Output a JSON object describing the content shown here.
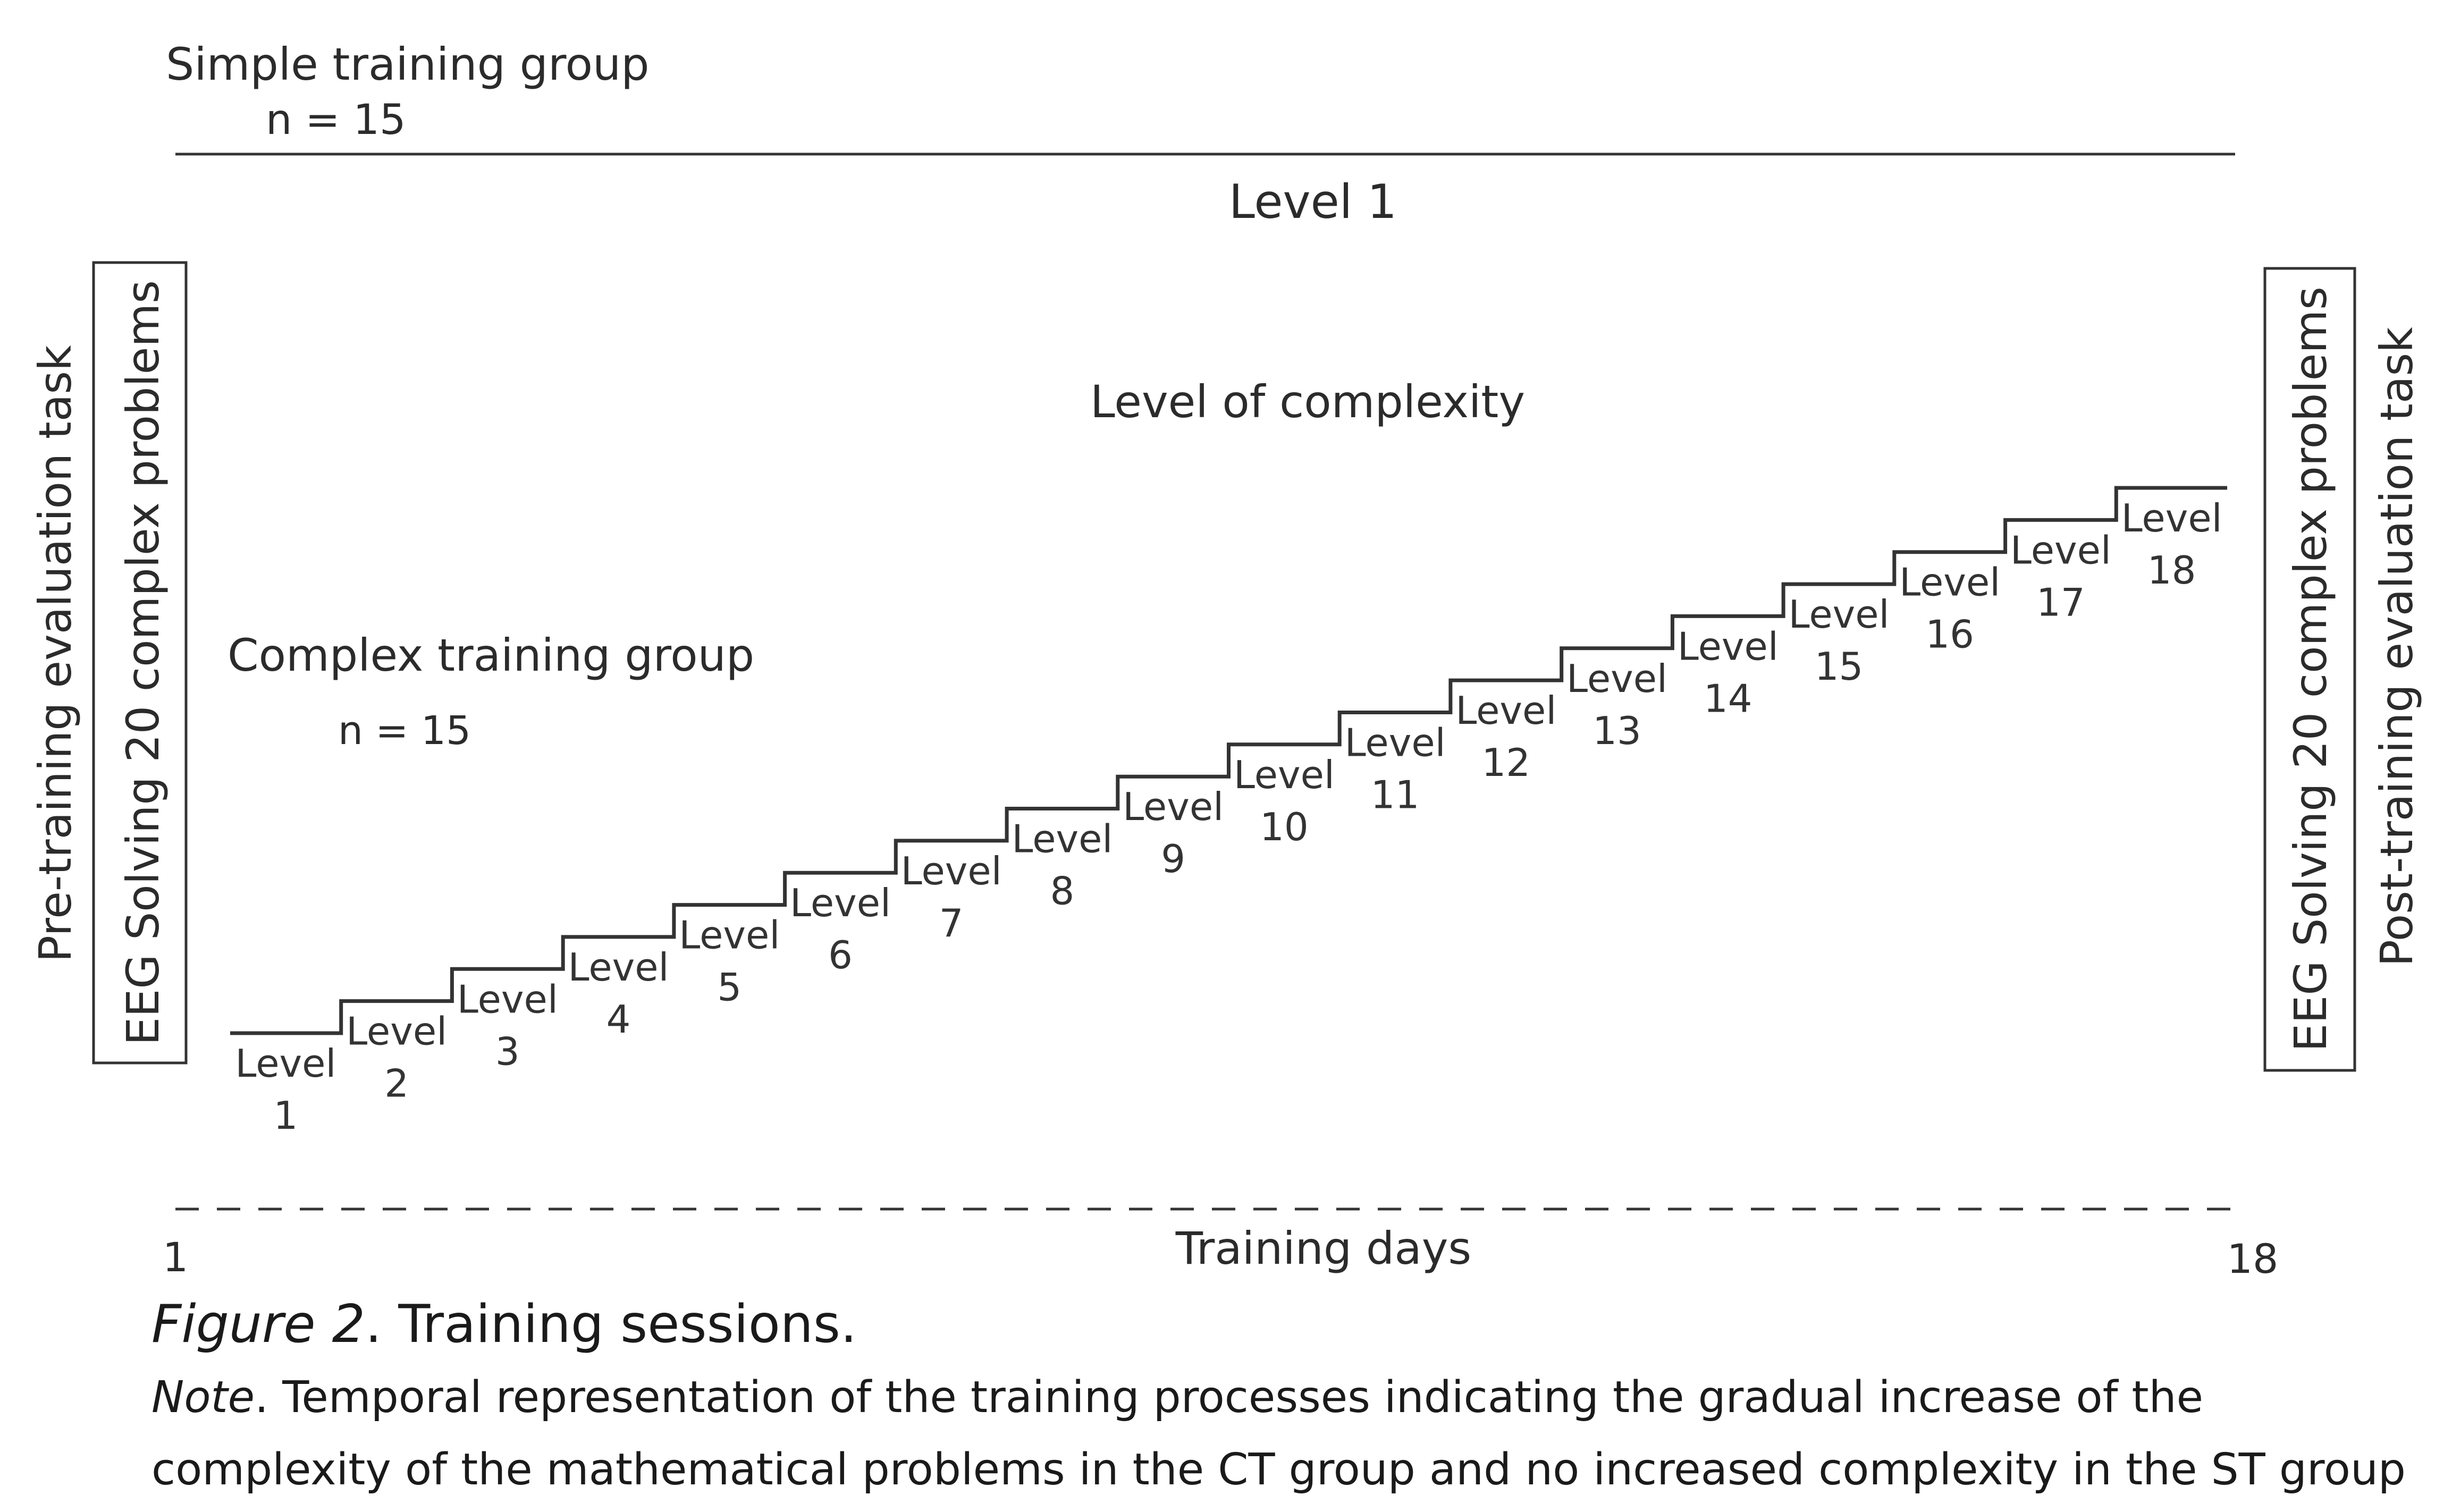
{
  "simple_group": {
    "title": "Simple training group",
    "n": "n = 15",
    "level": "Level 1"
  },
  "complex_group": {
    "title": "Complex training group",
    "n": "n = 15",
    "complexity_label": "Level of complexity",
    "levels": [
      {
        "word": "Level",
        "num": "1"
      },
      {
        "word": "Level",
        "num": "2"
      },
      {
        "word": "Level",
        "num": "3"
      },
      {
        "word": "Level",
        "num": "4"
      },
      {
        "word": "Level",
        "num": "5"
      },
      {
        "word": "Level",
        "num": "6"
      },
      {
        "word": "Level",
        "num": "7"
      },
      {
        "word": "Level",
        "num": "8"
      },
      {
        "word": "Level",
        "num": "9"
      },
      {
        "word": "Level",
        "num": "10"
      },
      {
        "word": "Level",
        "num": "11"
      },
      {
        "word": "Level",
        "num": "12"
      },
      {
        "word": "Level",
        "num": "13"
      },
      {
        "word": "Level",
        "num": "14"
      },
      {
        "word": "Level",
        "num": "15"
      },
      {
        "word": "Level",
        "num": "16"
      },
      {
        "word": "Level",
        "num": "17"
      },
      {
        "word": "Level",
        "num": "18"
      }
    ]
  },
  "pre_task": {
    "outer_label": "Pre-training evaluation task",
    "box_label": "EEG Solving 20 complex problems"
  },
  "post_task": {
    "box_label": "EEG Solving 20 complex problems",
    "outer_label": "Post-training evaluation task"
  },
  "timeline": {
    "start": "1",
    "end": "18",
    "label": "Training days"
  },
  "caption": {
    "figure_label": "Figure 2",
    "figure_title": ". Training sessions.",
    "note_label": "Note",
    "note_line1": ". Temporal representation of the training processes indicating the gradual increase of the",
    "note_line2": "complexity of the mathematical problems in the CT group and no increased complexity in the ST group"
  }
}
